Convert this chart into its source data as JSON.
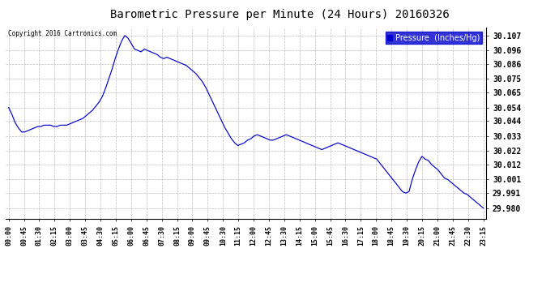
{
  "title": "Barometric Pressure per Minute (24 Hours) 20160326",
  "copyright": "Copyright 2016 Cartronics.com",
  "line_color": "#0000cc",
  "background_color": "#ffffff",
  "grid_color": "#bbbbbb",
  "yticks": [
    29.98,
    29.991,
    30.001,
    30.012,
    30.022,
    30.033,
    30.044,
    30.054,
    30.065,
    30.075,
    30.086,
    30.096,
    30.107
  ],
  "ylim": [
    29.972,
    30.113
  ],
  "xtick_labels": [
    "00:00",
    "00:45",
    "01:30",
    "02:15",
    "03:00",
    "03:45",
    "04:30",
    "05:15",
    "06:00",
    "06:45",
    "07:30",
    "08:15",
    "09:00",
    "09:45",
    "10:30",
    "11:15",
    "12:00",
    "12:45",
    "13:30",
    "14:15",
    "15:00",
    "15:45",
    "16:30",
    "17:15",
    "18:00",
    "18:45",
    "19:30",
    "20:15",
    "21:00",
    "21:45",
    "22:30",
    "23:15"
  ],
  "pressure_data": [
    30.054,
    30.049,
    30.043,
    30.039,
    30.036,
    30.036,
    30.037,
    30.038,
    30.039,
    30.04,
    30.04,
    30.041,
    30.041,
    30.041,
    30.04,
    30.04,
    30.041,
    30.041,
    30.041,
    30.042,
    30.043,
    30.044,
    30.045,
    30.046,
    30.048,
    30.05,
    30.052,
    30.055,
    30.058,
    30.062,
    30.068,
    30.075,
    30.082,
    30.09,
    30.097,
    30.103,
    30.107,
    30.105,
    30.101,
    30.097,
    30.096,
    30.095,
    30.097,
    30.096,
    30.095,
    30.094,
    30.093,
    30.091,
    30.09,
    30.091,
    30.09,
    30.089,
    30.088,
    30.087,
    30.086,
    30.085,
    30.083,
    30.081,
    30.079,
    30.076,
    30.073,
    30.069,
    30.064,
    30.059,
    30.054,
    30.049,
    30.044,
    30.039,
    30.035,
    30.031,
    30.028,
    30.026,
    30.027,
    30.028,
    30.03,
    30.031,
    30.033,
    30.034,
    30.033,
    30.032,
    30.031,
    30.03,
    30.03,
    30.031,
    30.032,
    30.033,
    30.034,
    30.033,
    30.032,
    30.031,
    30.03,
    30.029,
    30.028,
    30.027,
    30.026,
    30.025,
    30.024,
    30.023,
    30.024,
    30.025,
    30.026,
    30.027,
    30.028,
    30.027,
    30.026,
    30.025,
    30.024,
    30.023,
    30.022,
    30.021,
    30.02,
    30.019,
    30.018,
    30.017,
    30.016,
    30.013,
    30.01,
    30.007,
    30.004,
    30.001,
    29.998,
    29.995,
    29.992,
    29.991,
    29.992,
    30.001,
    30.008,
    30.014,
    30.018,
    30.016,
    30.015,
    30.012,
    30.01,
    30.008,
    30.005,
    30.002,
    30.001,
    29.999,
    29.997,
    29.995,
    29.993,
    29.991,
    29.99,
    29.988,
    29.986,
    29.984,
    29.982,
    29.98
  ]
}
